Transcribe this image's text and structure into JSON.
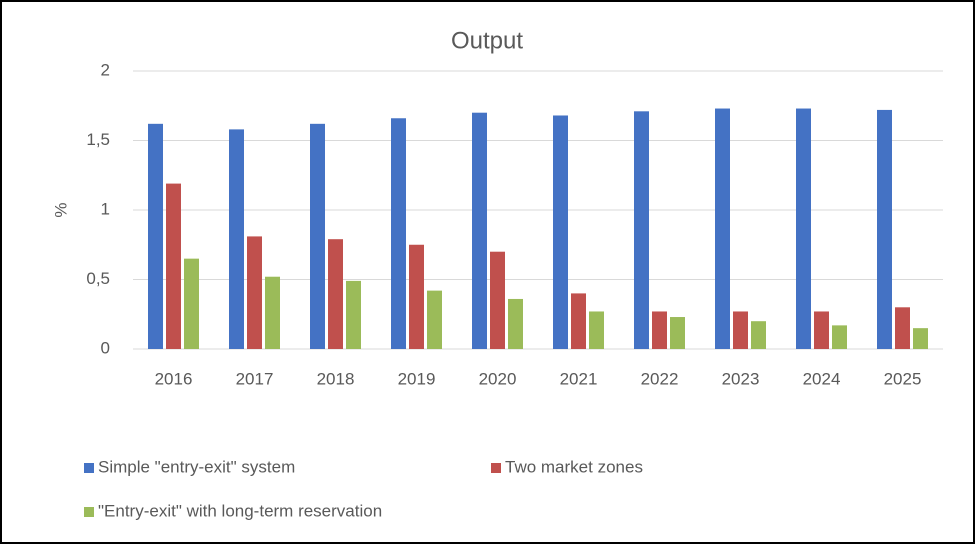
{
  "chart_data": {
    "type": "bar",
    "title": "Output",
    "y_label": "%",
    "categories": [
      "2016",
      "2017",
      "2018",
      "2019",
      "2020",
      "2021",
      "2022",
      "2023",
      "2024",
      "2025"
    ],
    "series": [
      {
        "name": "Simple \"entry-exit\" system",
        "color": "#4472c4",
        "values": [
          1.62,
          1.58,
          1.62,
          1.66,
          1.7,
          1.68,
          1.71,
          1.73,
          1.73,
          1.72
        ]
      },
      {
        "name": "Two market zones",
        "color": "#c0504d",
        "values": [
          1.19,
          0.81,
          0.79,
          0.75,
          0.7,
          0.4,
          0.27,
          0.27,
          0.27,
          0.3
        ]
      },
      {
        "name": "\"Entry-exit\" with long-term reservation",
        "color": "#9bbb59",
        "values": [
          0.65,
          0.52,
          0.49,
          0.42,
          0.36,
          0.27,
          0.23,
          0.2,
          0.17,
          0.15
        ]
      }
    ],
    "ylim": [
      0,
      2
    ],
    "yticks": [
      0,
      {
        "value": 0.5,
        "label": "0,5"
      },
      1,
      {
        "value": 1.5,
        "label": "1,5"
      },
      2
    ],
    "grid": true,
    "legend": "bottom"
  }
}
